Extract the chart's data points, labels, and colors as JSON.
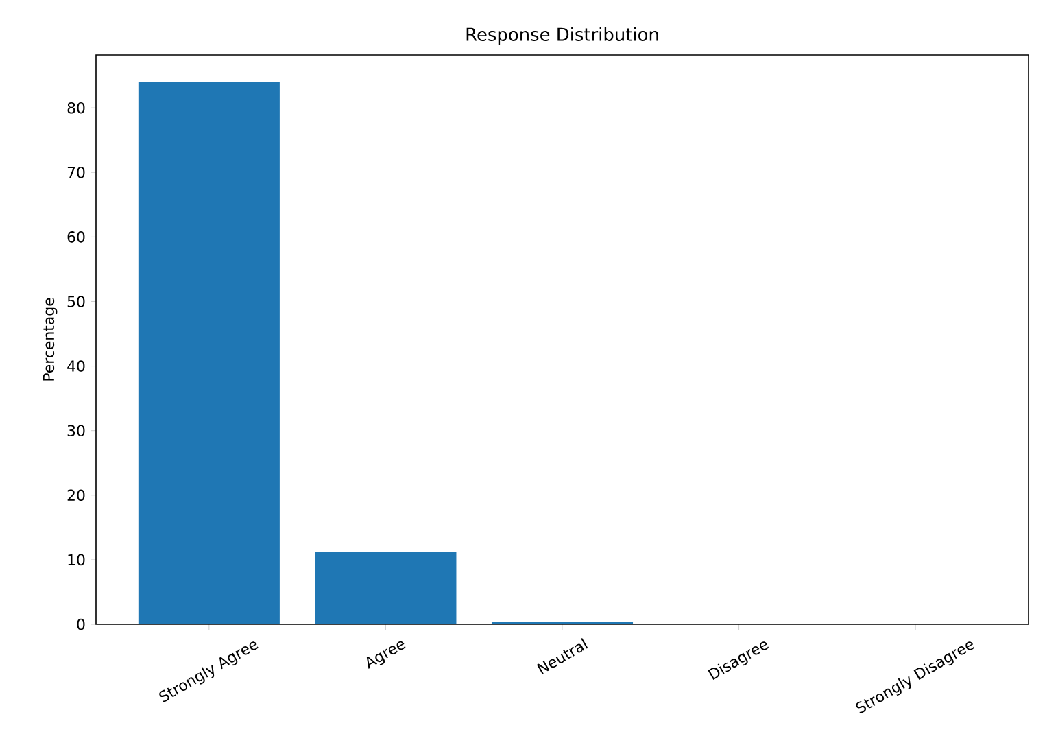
{
  "chart_data": {
    "type": "bar",
    "title": "Response Distribution",
    "ylabel": "Percentage",
    "categories": [
      "Strongly Agree",
      "Agree",
      "Neutral",
      "Disagree",
      "Strongly Disagree"
    ],
    "values": [
      84,
      11.2,
      0.4,
      0,
      0
    ],
    "color": "#1f77b4",
    "ylim": [
      0,
      88.2
    ],
    "yticks": [
      0,
      10,
      20,
      30,
      40,
      50,
      60,
      70,
      80
    ],
    "grid": false
  }
}
